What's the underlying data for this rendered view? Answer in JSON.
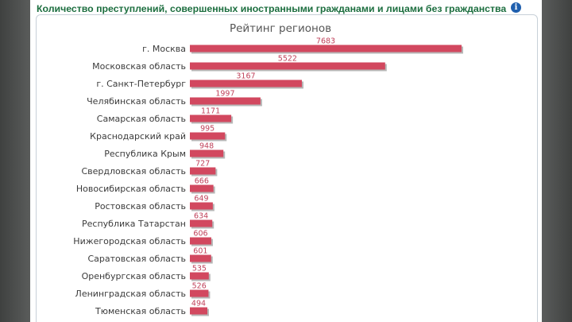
{
  "header": {
    "title": "Количество преступлений, совершенных иностранными гражданами и лицами без гражданства",
    "info_icon": "info-icon"
  },
  "colors": {
    "title": "#1c6e3f",
    "bar": "#d2485f",
    "bar_shadow": "#b7b7b7",
    "value_label": "#c0415a"
  },
  "chart_data": {
    "type": "bar",
    "orientation": "horizontal",
    "title": "Рейтинг регионов",
    "categories": [
      "г. Москва",
      "Московская область",
      "г. Санкт-Петербург",
      "Челябинская область",
      "Самарская область",
      "Краснодарский край",
      "Республика Крым",
      "Свердловская область",
      "Новосибирская область",
      "Ростовская область",
      "Республика Татарстан",
      "Нижегородская область",
      "Саратовская область",
      "Оренбургская область",
      "Ленинградская область",
      "Тюменская область"
    ],
    "values": [
      7683,
      5522,
      3167,
      1997,
      1171,
      995,
      948,
      727,
      666,
      649,
      634,
      606,
      601,
      535,
      526,
      494
    ],
    "value_labels": [
      "7683",
      "5522",
      "3167",
      "1997",
      "1171",
      "995",
      "948",
      "727",
      "666",
      "649",
      "634",
      "606",
      "601",
      "535",
      "526",
      "494"
    ],
    "xlim": [
      0,
      7683
    ],
    "grid": false,
    "legend": "none",
    "data_labels": true
  }
}
